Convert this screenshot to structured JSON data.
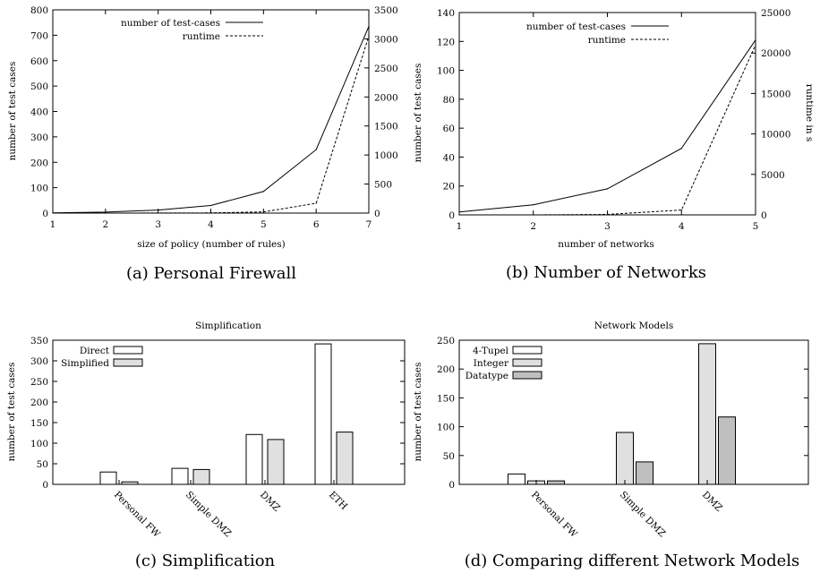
{
  "chart_data": [
    {
      "type": "line",
      "caption": "(a) Personal Firewall",
      "xlabel": "size of policy (number of rules)",
      "ylabel": "number of test cases",
      "y2label": "",
      "xlim": [
        1,
        7
      ],
      "ylim": [
        0,
        800
      ],
      "y2lim": [
        0,
        3500
      ],
      "x_ticks": [
        1,
        2,
        3,
        4,
        5,
        6,
        7
      ],
      "y_ticks": [
        0,
        100,
        200,
        300,
        400,
        500,
        600,
        700,
        800
      ],
      "y2_ticks": [
        0,
        500,
        1000,
        1500,
        2000,
        2500,
        3000,
        3500
      ],
      "legend_position": "top-left",
      "series": [
        {
          "name": "number of test-cases",
          "axis": "left",
          "style": "solid",
          "x": [
            1,
            2,
            3,
            4,
            5,
            6,
            7
          ],
          "values": [
            1,
            4,
            12,
            30,
            85,
            250,
            735
          ]
        },
        {
          "name": "runtime",
          "axis": "right",
          "style": "dashed",
          "x": [
            1,
            2,
            3,
            4,
            5,
            6,
            7
          ],
          "values": [
            0,
            0,
            1,
            3,
            20,
            170,
            3050
          ]
        }
      ]
    },
    {
      "type": "line",
      "caption": "(b) Number of Networks",
      "xlabel": "number of networks",
      "ylabel": "number of test cases",
      "y2label": "runtime in s",
      "xlim": [
        1,
        5
      ],
      "ylim": [
        0,
        140
      ],
      "y2lim": [
        0,
        25000
      ],
      "x_ticks": [
        1,
        2,
        3,
        4,
        5
      ],
      "y_ticks": [
        0,
        20,
        40,
        60,
        80,
        100,
        120,
        140
      ],
      "y2_ticks": [
        0,
        5000,
        10000,
        15000,
        20000,
        25000
      ],
      "legend_position": "top-left",
      "series": [
        {
          "name": "number of test-cases",
          "axis": "left",
          "style": "solid",
          "x": [
            1,
            2,
            3,
            4,
            5
          ],
          "values": [
            2,
            7,
            18,
            46,
            121
          ]
        },
        {
          "name": "runtime",
          "axis": "right",
          "style": "dashed",
          "x": [
            1,
            2,
            3,
            4,
            5
          ],
          "values": [
            0,
            5,
            60,
            600,
            21000
          ]
        }
      ]
    },
    {
      "type": "bar",
      "title": "Simplification",
      "caption": "(c) Simplification",
      "ylabel": "number of test cases",
      "ylim": [
        0,
        350
      ],
      "y_ticks": [
        0,
        50,
        100,
        150,
        200,
        250,
        300,
        350
      ],
      "categories": [
        "Personal FW",
        "Simple DMZ",
        "DMZ",
        "ETH"
      ],
      "legend_position": "top-left",
      "series": [
        {
          "name": "Direct",
          "color": "#ffffff",
          "values": [
            30,
            39,
            121,
            341
          ]
        },
        {
          "name": "Simplified",
          "color": "#e0e0e0",
          "values": [
            6,
            36,
            109,
            127
          ]
        }
      ]
    },
    {
      "type": "bar",
      "title": "Network Models",
      "caption": "(d) Comparing different Network Models",
      "ylabel": "number of test cases",
      "ylim": [
        0,
        250
      ],
      "y_ticks": [
        0,
        50,
        100,
        150,
        200,
        250
      ],
      "categories": [
        "Personal FW",
        "Simple DMZ",
        "DMZ"
      ],
      "legend_position": "top-left",
      "series": [
        {
          "name": "4-Tupel",
          "color": "#ffffff",
          "values": [
            18,
            0,
            0
          ]
        },
        {
          "name": "Integer",
          "color": "#e0e0e0",
          "values": [
            6,
            90,
            244
          ]
        },
        {
          "name": "Datatype",
          "color": "#bfbfbf",
          "values": [
            6,
            39,
            117
          ]
        }
      ]
    }
  ]
}
